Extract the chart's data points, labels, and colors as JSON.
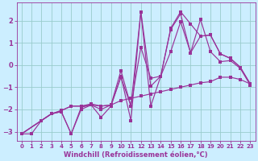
{
  "background_color": "#cceeff",
  "grid_color": "#99cccc",
  "line_color": "#993399",
  "xlabel": "Windchill (Refroidissement éolien,°C)",
  "xlabel_fontsize": 6,
  "xtick_fontsize": 5,
  "ytick_fontsize": 6,
  "ylim": [
    -3.4,
    2.8
  ],
  "xlim": [
    -0.5,
    23.5
  ],
  "yticks": [
    -3,
    -2,
    -1,
    0,
    1,
    2
  ],
  "xticks": [
    0,
    1,
    2,
    3,
    4,
    5,
    6,
    7,
    8,
    9,
    10,
    11,
    12,
    13,
    14,
    15,
    16,
    17,
    18,
    19,
    20,
    21,
    22,
    23
  ],
  "line1_x": [
    0,
    1,
    2,
    3,
    4,
    5,
    6,
    7,
    8,
    9,
    10,
    11,
    12,
    13,
    14,
    15,
    16,
    17,
    18,
    19,
    20,
    21,
    22,
    23
  ],
  "line1_y": [
    -3.1,
    -3.1,
    -2.5,
    -2.2,
    -2.1,
    -3.1,
    -1.9,
    -1.8,
    -2.0,
    -1.8,
    -1.6,
    -1.5,
    -1.4,
    -1.3,
    -1.2,
    -1.1,
    -1.0,
    -0.9,
    -0.8,
    -0.75,
    -0.55,
    -0.55,
    -0.65,
    -0.85
  ],
  "line2_x": [
    0,
    2,
    3,
    4,
    5,
    6,
    7,
    8,
    9,
    10,
    11,
    12,
    13,
    14,
    15,
    16,
    17,
    18,
    19,
    20,
    21,
    22,
    23
  ],
  "line2_y": [
    -3.1,
    -2.5,
    -2.2,
    -2.1,
    -3.1,
    -2.0,
    -1.8,
    -2.35,
    -1.85,
    -0.5,
    -2.5,
    2.4,
    -1.85,
    -0.5,
    1.6,
    2.3,
    0.55,
    2.05,
    0.6,
    0.15,
    0.2,
    -0.15,
    -0.9
  ],
  "line3_x": [
    0,
    2,
    3,
    4,
    5,
    6,
    7,
    8,
    9,
    10,
    11,
    12,
    13,
    14,
    15,
    16,
    17,
    18,
    19,
    20,
    21,
    22,
    23
  ],
  "line3_y": [
    -3.1,
    -2.5,
    -2.2,
    -2.05,
    -1.85,
    -1.85,
    -1.8,
    -1.85,
    -1.8,
    -0.25,
    -1.85,
    2.4,
    -0.95,
    -0.5,
    1.65,
    2.4,
    1.85,
    1.3,
    1.35,
    0.5,
    0.3,
    -0.1,
    -0.85
  ],
  "line4_x": [
    0,
    2,
    3,
    4,
    5,
    6,
    7,
    8,
    9,
    10,
    11,
    12,
    13,
    14,
    15,
    16,
    17,
    18,
    19,
    20,
    21,
    22,
    23
  ],
  "line4_y": [
    -3.1,
    -2.5,
    -2.2,
    -2.05,
    -1.85,
    -1.85,
    -1.75,
    -1.85,
    -1.8,
    -0.55,
    -1.85,
    0.8,
    -0.6,
    -0.5,
    0.6,
    1.95,
    0.55,
    1.3,
    1.35,
    0.5,
    0.3,
    -0.1,
    -0.85
  ]
}
